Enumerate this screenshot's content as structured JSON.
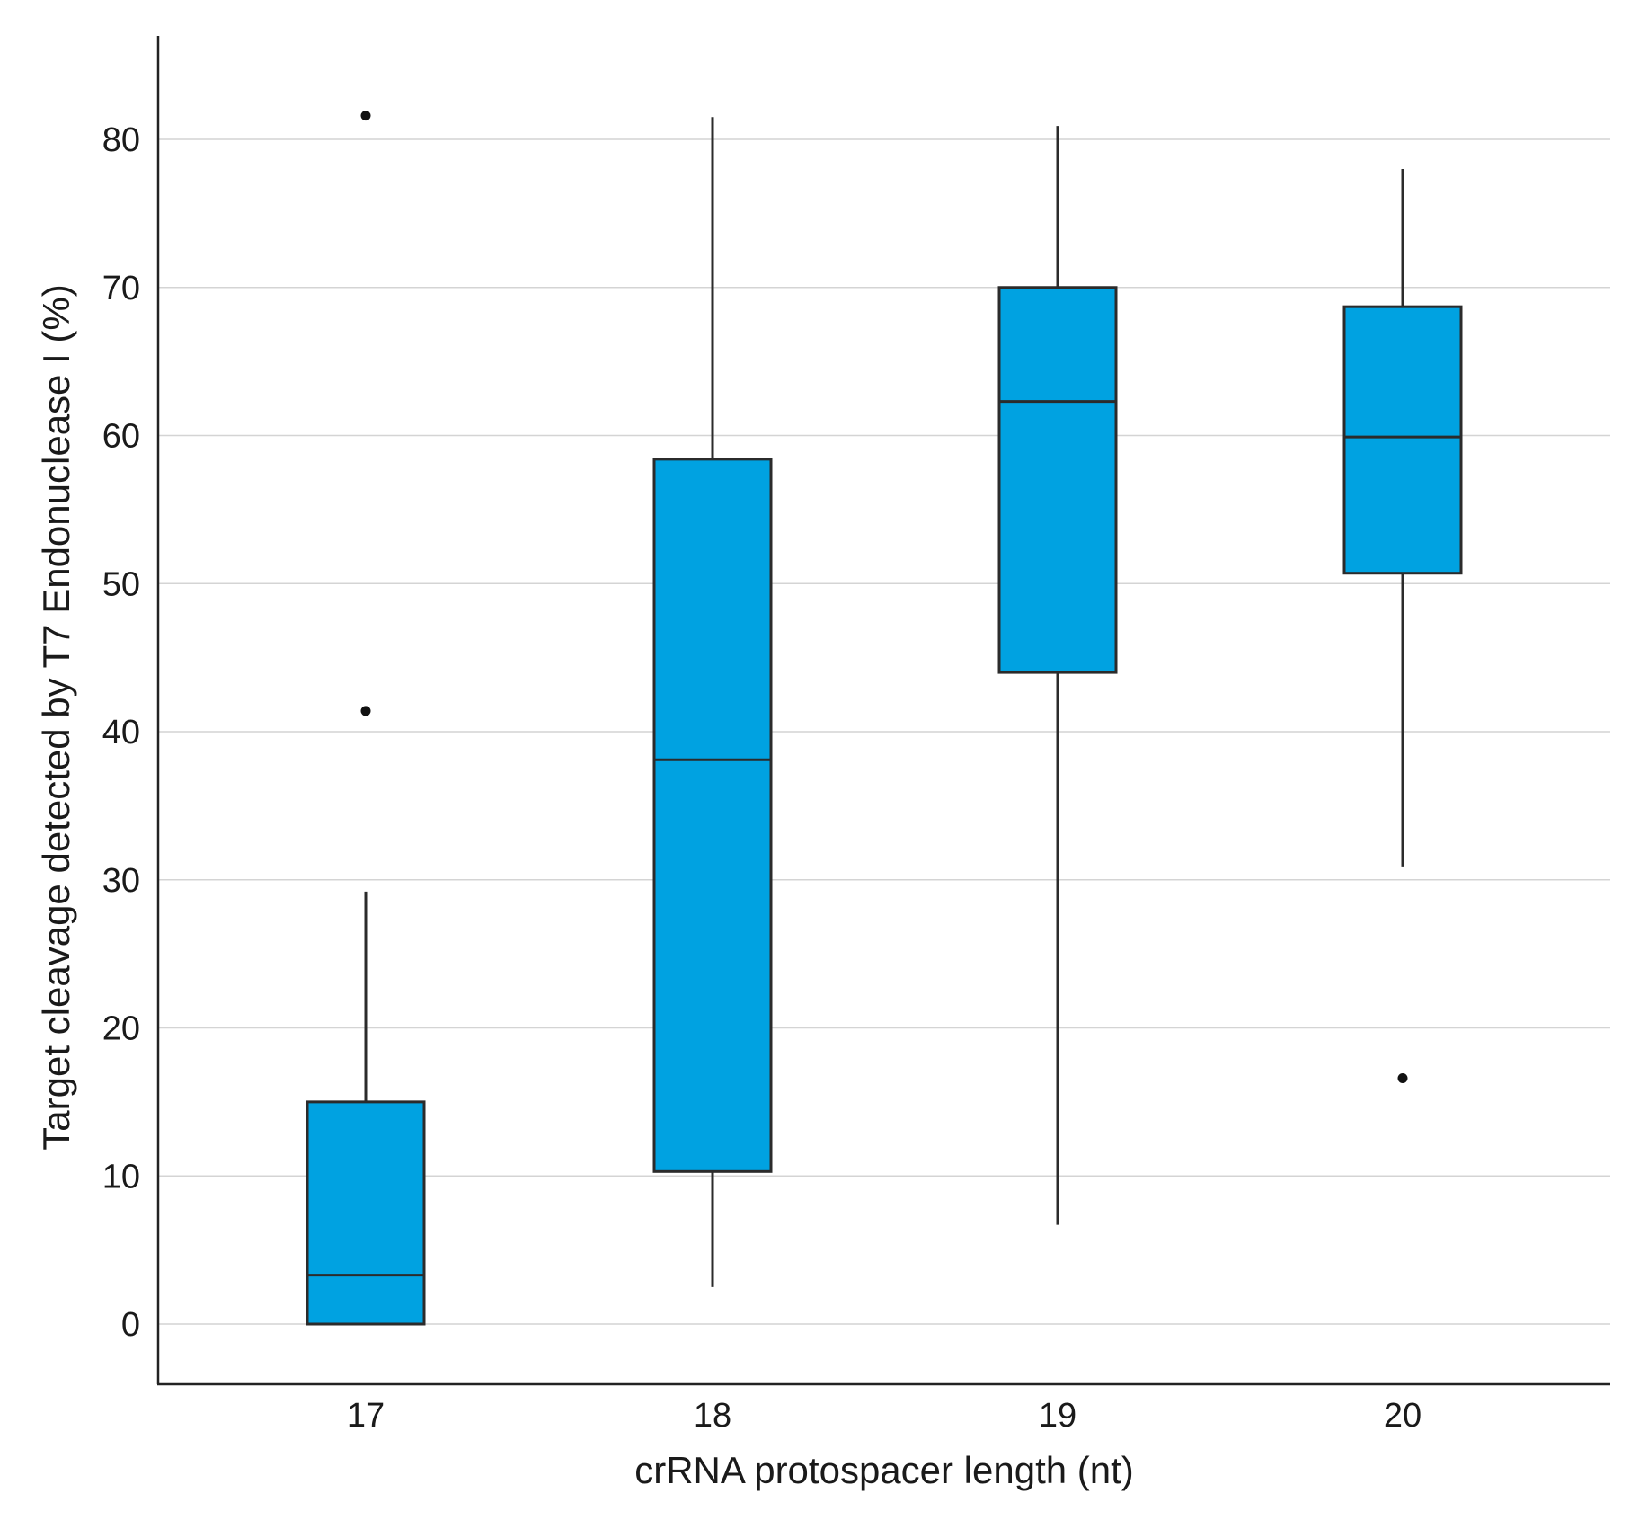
{
  "chart_data": {
    "type": "boxplot",
    "xlabel": "crRNA protospacer length (nt)",
    "ylabel": "Target cleavage detected by T7 Endonuclease I (%)",
    "ylim": [
      -4,
      87
    ],
    "yticks": [
      0,
      10,
      20,
      30,
      40,
      50,
      60,
      70,
      80
    ],
    "categories": [
      "17",
      "18",
      "19",
      "20"
    ],
    "box_color": "#00a2e1",
    "grid": "horizontal",
    "boxes": [
      {
        "category": "17",
        "whisker_low": 0,
        "q1": 0,
        "median": 3.3,
        "q3": 15,
        "whisker_high": 29.2,
        "outliers": [
          41.4,
          81.6
        ]
      },
      {
        "category": "18",
        "whisker_low": 2.5,
        "q1": 10.3,
        "median": 38.1,
        "q3": 58.4,
        "whisker_high": 81.5,
        "outliers": []
      },
      {
        "category": "19",
        "whisker_low": 6.7,
        "q1": 44,
        "median": 62.3,
        "q3": 70,
        "whisker_high": 80.9,
        "outliers": []
      },
      {
        "category": "20",
        "whisker_low": 30.9,
        "q1": 50.7,
        "median": 59.9,
        "q3": 68.7,
        "whisker_high": 78,
        "outliers": [
          16.6
        ]
      }
    ]
  }
}
